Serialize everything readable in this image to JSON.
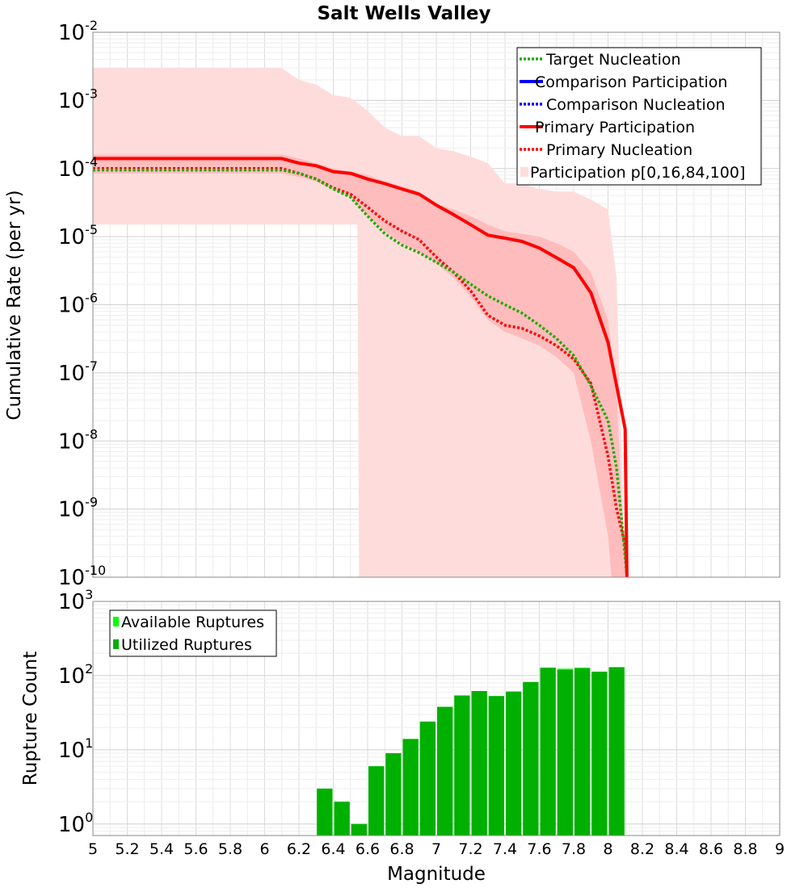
{
  "chart_data": [
    {
      "type": "line",
      "title": "Salt Wells Valley",
      "xlabel": "Magnitude",
      "ylabel": "Cumulative Rate (per yr)",
      "yscale": "log",
      "xlim": [
        5,
        9
      ],
      "ylim": [
        1e-10,
        0.01
      ],
      "y_tick_exponents": [
        "-10",
        "-9",
        "-8",
        "-7",
        "-6",
        "-5",
        "-4",
        "-3",
        "-2"
      ],
      "y_tick_base": "10",
      "legend_location": "top-right",
      "legend": [
        "Target Nucleation",
        "Comparison Participation",
        "Comparison Nucleation",
        "Primary Participation",
        "Primary Nucleation",
        "Participation p[0,16,84,100]"
      ],
      "colors": {
        "target": "#22aa00",
        "comparison": "#0000ff",
        "primary": "#ff0000",
        "band_outer": "#ffdcdc",
        "band_inner": "#ffbcbc"
      },
      "series": [
        {
          "name": "Target Nucleation",
          "style": "dotted",
          "color": "#22aa00",
          "x": [
            5.0,
            6.1,
            6.2,
            6.3,
            6.4,
            6.5,
            6.6,
            6.7,
            6.8,
            6.9,
            7.0,
            7.1,
            7.2,
            7.3,
            7.4,
            7.5,
            7.6,
            7.7,
            7.8,
            7.9,
            8.0,
            8.05,
            8.1,
            8.11
          ],
          "y": [
            9.5e-05,
            9.5e-05,
            8.5e-05,
            7e-05,
            5e-05,
            3.8e-05,
            2e-05,
            1.1e-05,
            7.5e-06,
            5.8e-06,
            4.2e-06,
            3e-06,
            2e-06,
            1.35e-06,
            1e-06,
            7.5e-07,
            5e-07,
            3.2e-07,
            1.8e-07,
            6.5e-08,
            2e-08,
            4e-09,
            2e-10,
            1e-10
          ]
        },
        {
          "name": "Primary Participation",
          "style": "solid",
          "color": "#ff0000",
          "x": [
            5.0,
            6.1,
            6.2,
            6.3,
            6.4,
            6.5,
            6.6,
            6.7,
            6.8,
            6.9,
            7.0,
            7.1,
            7.2,
            7.3,
            7.4,
            7.5,
            7.6,
            7.7,
            7.8,
            7.9,
            8.0,
            8.1,
            8.11
          ],
          "y": [
            0.00014,
            0.00014,
            0.00012,
            0.00011,
            9e-05,
            8.5e-05,
            7e-05,
            6e-05,
            5e-05,
            4.2e-05,
            2.9e-05,
            2.1e-05,
            1.5e-05,
            1.05e-05,
            9.5e-06,
            8.5e-06,
            6.8e-06,
            4.9e-06,
            3.5e-06,
            1.5e-06,
            2.8e-07,
            1.5e-08,
            1e-10
          ]
        },
        {
          "name": "Primary Nucleation",
          "style": "dotted",
          "color": "#ff0000",
          "x": [
            5.0,
            6.1,
            6.2,
            6.3,
            6.4,
            6.5,
            6.6,
            6.7,
            6.8,
            6.9,
            7.0,
            7.1,
            7.2,
            7.3,
            7.4,
            7.5,
            7.6,
            7.7,
            7.8,
            7.9,
            8.0,
            8.05,
            8.1,
            8.11
          ],
          "y": [
            0.0001,
            0.0001,
            8.5e-05,
            7e-05,
            5.2e-05,
            4.2e-05,
            2.7e-05,
            1.7e-05,
            1.2e-05,
            9e-06,
            5e-06,
            3e-06,
            1.6e-06,
            7e-07,
            5e-07,
            4.5e-07,
            3.5e-07,
            2.5e-07,
            1.6e-07,
            7e-08,
            6e-09,
            1e-09,
            3e-10,
            1e-10
          ]
        }
      ],
      "participation_band": {
        "name": "Participation p[0,16,84,100]",
        "p0_x": [
          5.0,
          6.54,
          6.55,
          9.0
        ],
        "p0_y": [
          1.5e-05,
          1.5e-05,
          1e-10,
          1e-10
        ],
        "p100_x": [
          5.0,
          6.1,
          6.2,
          6.3,
          6.4,
          6.5,
          6.6,
          6.7,
          6.8,
          6.9,
          7.0,
          7.1,
          7.2,
          7.3,
          7.4,
          7.5,
          7.6,
          7.7,
          7.8,
          7.9,
          8.0,
          8.05,
          8.1
        ],
        "p100_y": [
          0.003,
          0.003,
          0.002,
          0.0017,
          0.0012,
          0.0011,
          0.0007,
          0.0004,
          0.0003,
          0.0003,
          0.0002,
          0.00018,
          0.00015,
          0.00012,
          6e-05,
          6e-05,
          5e-05,
          4.6e-05,
          4.6e-05,
          3.5e-05,
          2.5e-05,
          2.5e-06,
          1e-10
        ],
        "p16_x": [
          5.0,
          6.1,
          6.2,
          6.3,
          6.4,
          6.5,
          6.6,
          6.7,
          6.8,
          6.9,
          7.0,
          7.1,
          7.2,
          7.3,
          7.4,
          7.5,
          7.6,
          7.7,
          7.8,
          7.9,
          7.95,
          8.0,
          8.02
        ],
        "p16_y": [
          8.5e-05,
          8.5e-05,
          7.5e-05,
          6.5e-05,
          4.8e-05,
          3.8e-05,
          2e-05,
          1.2e-05,
          8e-06,
          6e-06,
          4e-06,
          2.5e-06,
          1.3e-06,
          6e-07,
          4e-07,
          3.2e-07,
          2.5e-07,
          1.7e-07,
          1e-07,
          1e-08,
          2e-09,
          4e-10,
          1e-10
        ],
        "p84_x": [
          5.0,
          6.1,
          6.2,
          6.3,
          6.4,
          6.5,
          6.6,
          6.7,
          6.8,
          6.9,
          7.0,
          7.1,
          7.2,
          7.3,
          7.4,
          7.5,
          7.6,
          7.7,
          7.8,
          7.9,
          8.0,
          8.05,
          8.1
        ],
        "p84_y": [
          0.00016,
          0.00016,
          0.00014,
          0.00012,
          0.0001,
          9e-05,
          8e-05,
          6.5e-05,
          5.5e-05,
          4.5e-05,
          3e-05,
          2.5e-05,
          2e-05,
          1.5e-05,
          1.2e-05,
          1.1e-05,
          1e-05,
          8e-06,
          6e-06,
          3e-06,
          6e-07,
          5e-08,
          1e-10
        ]
      }
    },
    {
      "type": "bar",
      "xlabel": "Magnitude",
      "ylabel": "Rupture Count",
      "yscale": "log",
      "xlim": [
        5,
        9
      ],
      "ylim": [
        0.7,
        1000
      ],
      "y_tick_exponents": [
        "0",
        "1",
        "2",
        "3"
      ],
      "y_tick_base": "10",
      "x_ticks": [
        "5",
        "5.2",
        "5.4",
        "5.6",
        "5.8",
        "6",
        "6.2",
        "6.4",
        "6.6",
        "6.8",
        "7",
        "7.2",
        "7.4",
        "7.6",
        "7.8",
        "8",
        "8.2",
        "8.4",
        "8.6",
        "8.8",
        "9"
      ],
      "legend_location": "top-left",
      "legend": [
        "Available Ruptures",
        "Utilized Ruptures"
      ],
      "colors": {
        "available": "#00ff00",
        "utilized": "#00b000"
      },
      "bin_width": 0.1,
      "bin_centers": [
        6.35,
        6.45,
        6.55,
        6.65,
        6.75,
        6.85,
        6.95,
        7.05,
        7.15,
        7.25,
        7.35,
        7.45,
        7.55,
        7.65,
        7.75,
        7.85,
        7.95,
        8.05
      ],
      "available": [
        3,
        2,
        1,
        6,
        9,
        14,
        24,
        38,
        54,
        62,
        53,
        61,
        82,
        128,
        124,
        128,
        113,
        130
      ],
      "utilized": [
        3,
        2,
        1,
        6,
        9,
        14,
        24,
        38,
        54,
        62,
        53,
        61,
        82,
        128,
        119,
        126,
        113,
        130
      ]
    }
  ]
}
